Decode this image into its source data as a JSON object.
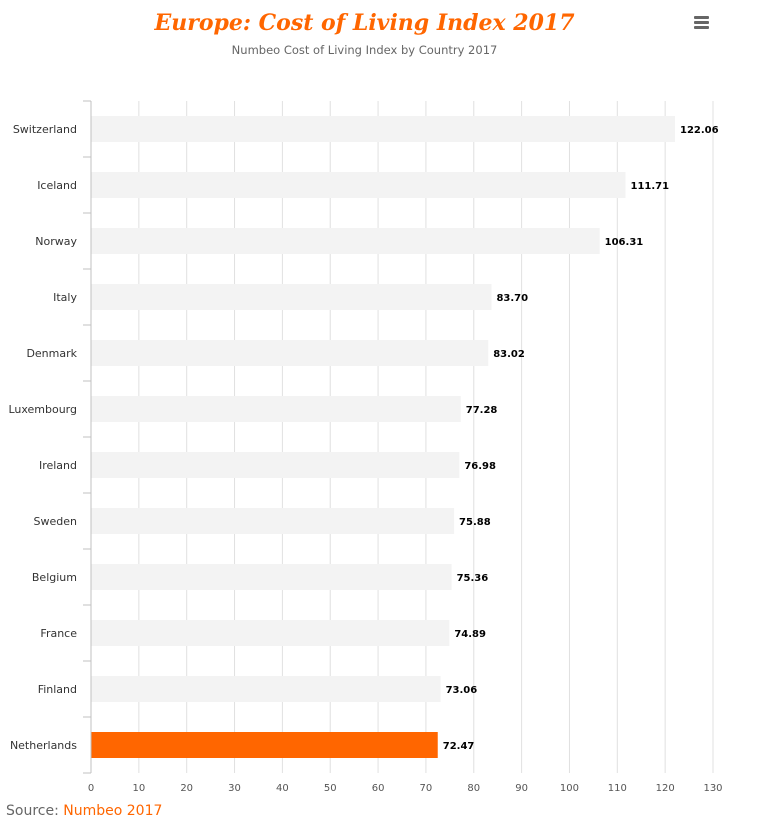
{
  "chart_data": {
    "type": "bar",
    "orientation": "horizontal",
    "title": "Europe: Cost of Living Index 2017",
    "subtitle": "Numbeo Cost of Living Index by Country 2017",
    "categories": [
      "Switzerland",
      "Iceland",
      "Norway",
      "Italy",
      "Denmark",
      "Luxembourg",
      "Ireland",
      "Sweden",
      "Belgium",
      "France",
      "Finland",
      "Netherlands"
    ],
    "values": [
      122.06,
      111.71,
      106.31,
      83.7,
      83.02,
      77.28,
      76.98,
      75.88,
      75.36,
      74.89,
      73.06,
      72.47
    ],
    "data_labels": [
      "122.06",
      "111.71",
      "106.31",
      "83.70",
      "83.02",
      "77.28",
      "76.98",
      "75.88",
      "75.36",
      "74.89",
      "73.06",
      "72.47"
    ],
    "highlight_category": "Netherlands",
    "xlim": [
      0,
      130
    ],
    "x_ticks": [
      0,
      10,
      20,
      30,
      40,
      50,
      60,
      70,
      80,
      90,
      100,
      110,
      120,
      130
    ],
    "grid": true,
    "legend": "none",
    "colors": {
      "bar": "#f3f3f3",
      "highlight": "#ff6600",
      "title": "#ff6600",
      "grid": "#e0e0e0"
    }
  },
  "source": {
    "prefix": "Source: ",
    "link_text": "Numbeo 2017"
  },
  "menu": {
    "icon": "hamburger-menu-icon"
  }
}
